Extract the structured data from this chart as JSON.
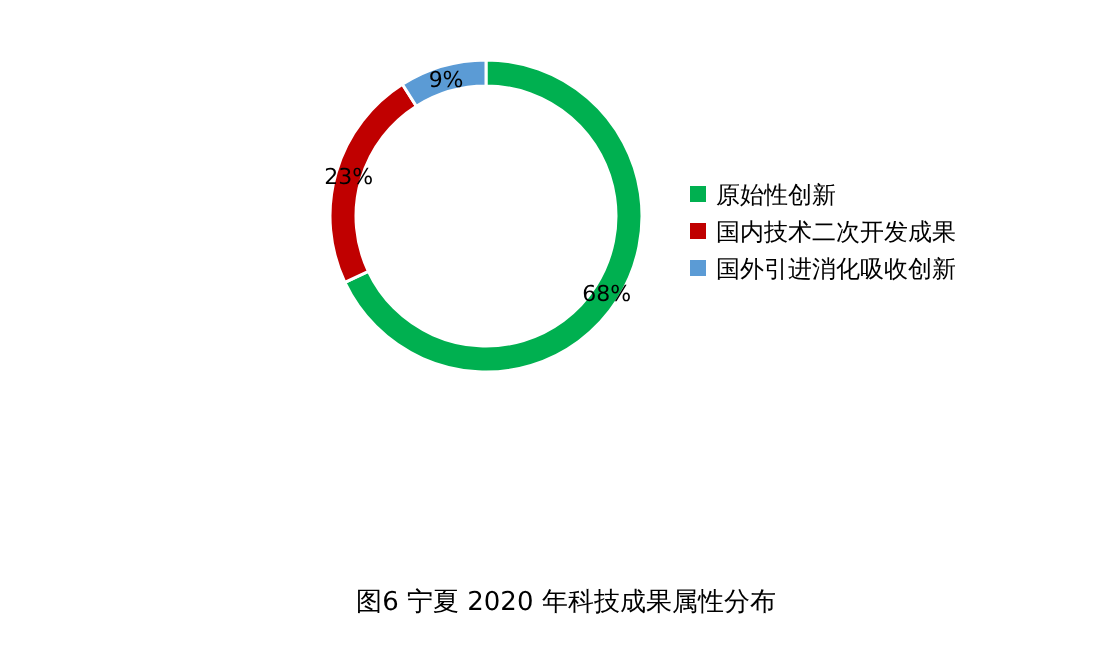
{
  "chart_data": {
    "type": "donut",
    "title": "图6 宁夏 2020 年科技成果属性分布",
    "categories": [
      "原始性创新",
      "国内技术二次开发成果",
      "国外引进消化吸收创新"
    ],
    "values": [
      68,
      23,
      9
    ],
    "colors": [
      "#00b050",
      "#c00000",
      "#5b9bd5"
    ],
    "value_labels": [
      "68%",
      "23%",
      "9%"
    ],
    "legend": "right"
  }
}
